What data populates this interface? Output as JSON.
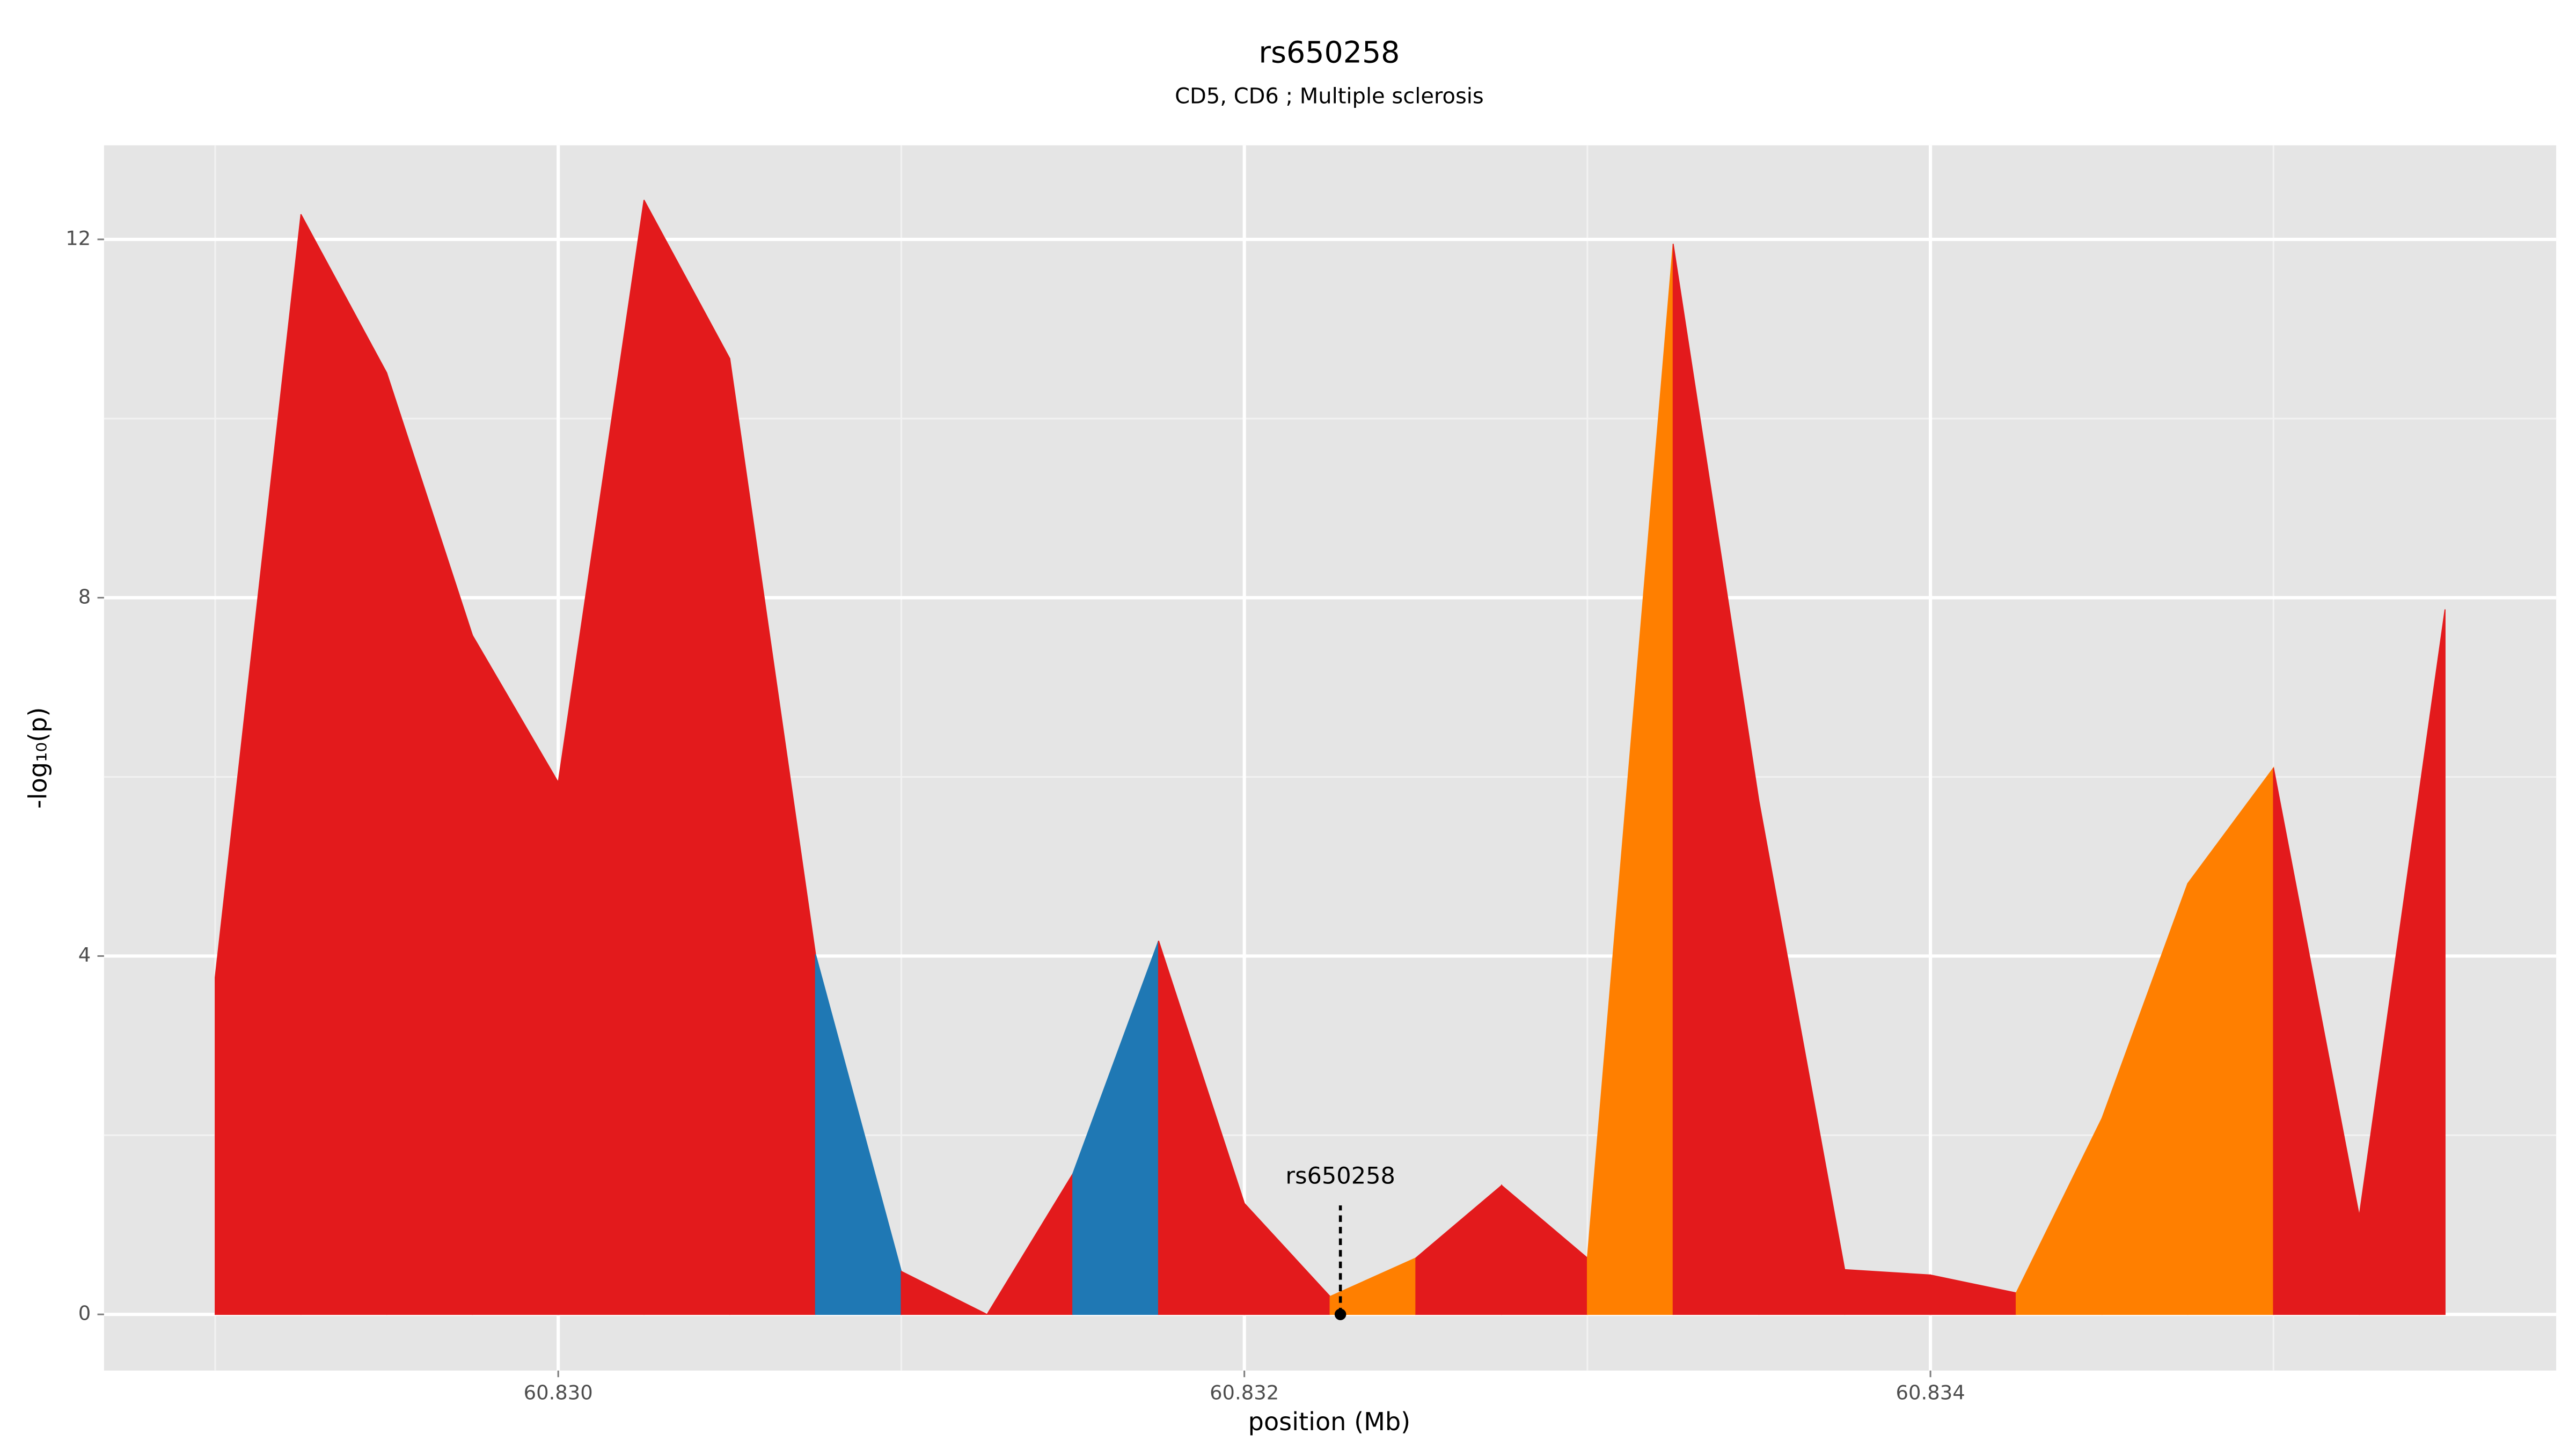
{
  "chart_data": {
    "type": "area",
    "title": "rs650258",
    "subtitle": "CD5, CD6 ; Multiple sclerosis",
    "xlabel": "position (Mb)",
    "ylabel": "-log₁₀(p)",
    "x": [
      60.829,
      60.82925,
      60.8295,
      60.82975,
      60.83,
      60.83025,
      60.8305,
      60.83075,
      60.831,
      60.83125,
      60.8315,
      60.83175,
      60.832,
      60.83225,
      60.8325,
      60.83275,
      60.833,
      60.83325,
      60.8335,
      60.83375,
      60.834,
      60.83425,
      60.8345,
      60.83475,
      60.835,
      60.83525,
      60.8355
    ],
    "values": [
      3.76,
      12.28,
      10.51,
      7.58,
      5.94,
      12.44,
      10.67,
      4.02,
      0.48,
      0.0,
      1.57,
      4.17,
      1.24,
      0.2,
      0.63,
      1.44,
      0.63,
      11.95,
      5.73,
      0.5,
      0.44,
      0.24,
      2.19,
      4.81,
      6.1,
      1.1,
      7.87
    ],
    "segment_colors": [
      "#e31a1c",
      "#e31a1c",
      "#e31a1c",
      "#e31a1c",
      "#e31a1c",
      "#e31a1c",
      "#e31a1c",
      "#1f78b4",
      "#e31a1c",
      "#e31a1c",
      "#1f78b4",
      "#e31a1c",
      "#e31a1c",
      "#ff7f00",
      "#e31a1c",
      "#e31a1c",
      "#ff7f00",
      "#e31a1c",
      "#e31a1c",
      "#e31a1c",
      "#e31a1c",
      "#ff7f00",
      "#ff7f00",
      "#ff7f00",
      "#e31a1c",
      "#e31a1c"
    ],
    "annotation": {
      "x": 60.83228,
      "y": 0,
      "label": "rs650258"
    },
    "xlim": [
      60.828676,
      60.835824
    ],
    "ylim": [
      -0.627,
      13.05
    ],
    "xticks": [
      {
        "value": 60.83,
        "label": "60.830"
      },
      {
        "value": 60.832,
        "label": "60.832"
      },
      {
        "value": 60.834,
        "label": "60.834"
      }
    ],
    "x_minor_ticks": [
      60.829,
      60.831,
      60.833,
      60.835
    ],
    "yticks": [
      0,
      4,
      8,
      12
    ],
    "y_minor_ticks": [
      2,
      6,
      10
    ],
    "grid": true
  }
}
